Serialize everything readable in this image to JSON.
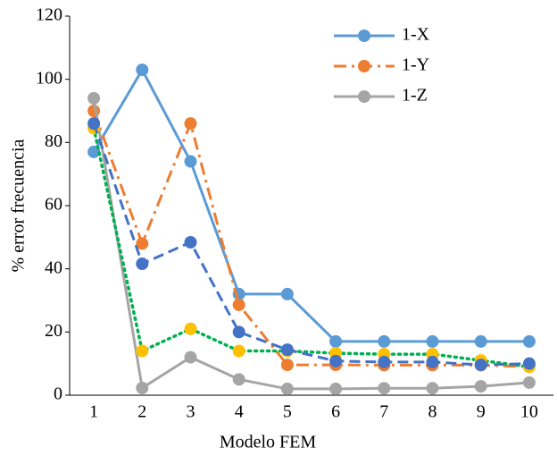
{
  "chart_data": {
    "type": "line",
    "x_label": "Modelo FEM",
    "y_label": "% error frecuencia",
    "categories": [
      "1",
      "2",
      "3",
      "4",
      "5",
      "6",
      "7",
      "8",
      "9",
      "10"
    ],
    "ylim": [
      0,
      120
    ],
    "yticks": [
      0,
      20,
      40,
      60,
      80,
      100,
      120
    ],
    "series": [
      {
        "name": "1-X",
        "color": "#5b9bd5",
        "dash": "solid",
        "values": [
          77,
          103,
          74,
          32,
          32,
          17,
          17,
          17,
          17,
          17
        ]
      },
      {
        "name": "1-Y",
        "color": "#ed7d31",
        "dash": "dashdot",
        "values": [
          90,
          48,
          86,
          28.6,
          9.6,
          9.6,
          9.5,
          9.5,
          9.5,
          9
        ]
      },
      {
        "name": "1-Z",
        "color": "#a5a5a5",
        "dash": "solid",
        "values": [
          94,
          2.3,
          12,
          5,
          2,
          2,
          2.2,
          2.2,
          2.8,
          4
        ]
      },
      {
        "color": "#ffc000",
        "line_color": "#00b050",
        "dash": "dotted",
        "values": [
          84.5,
          14,
          21,
          14,
          14,
          13.3,
          13,
          13,
          11,
          9
        ]
      },
      {
        "color": "#4472c4",
        "dash": "dashed",
        "values": [
          86,
          41.6,
          48.4,
          20,
          14.4,
          10.8,
          10.5,
          10.5,
          9.6,
          10
        ]
      }
    ]
  }
}
